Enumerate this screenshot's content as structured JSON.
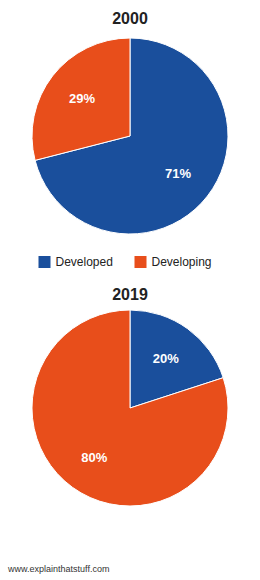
{
  "chart_data": [
    {
      "type": "pie",
      "title": "2000",
      "categories": [
        "Developed",
        "Developing"
      ],
      "values": [
        71,
        29
      ],
      "value_labels": [
        "71%",
        "29%"
      ],
      "colors": [
        "#1a4f9c",
        "#e84e1b"
      ],
      "data_labels": true,
      "legend": "bottom"
    },
    {
      "type": "pie",
      "title": "2019",
      "categories": [
        "Developed",
        "Developing"
      ],
      "values": [
        20,
        80
      ],
      "value_labels": [
        "20%",
        "80%"
      ],
      "colors": [
        "#1a4f9c",
        "#e84e1b"
      ],
      "data_labels": true,
      "annotations": [
        "www.explainthatstuff.com"
      ]
    }
  ]
}
